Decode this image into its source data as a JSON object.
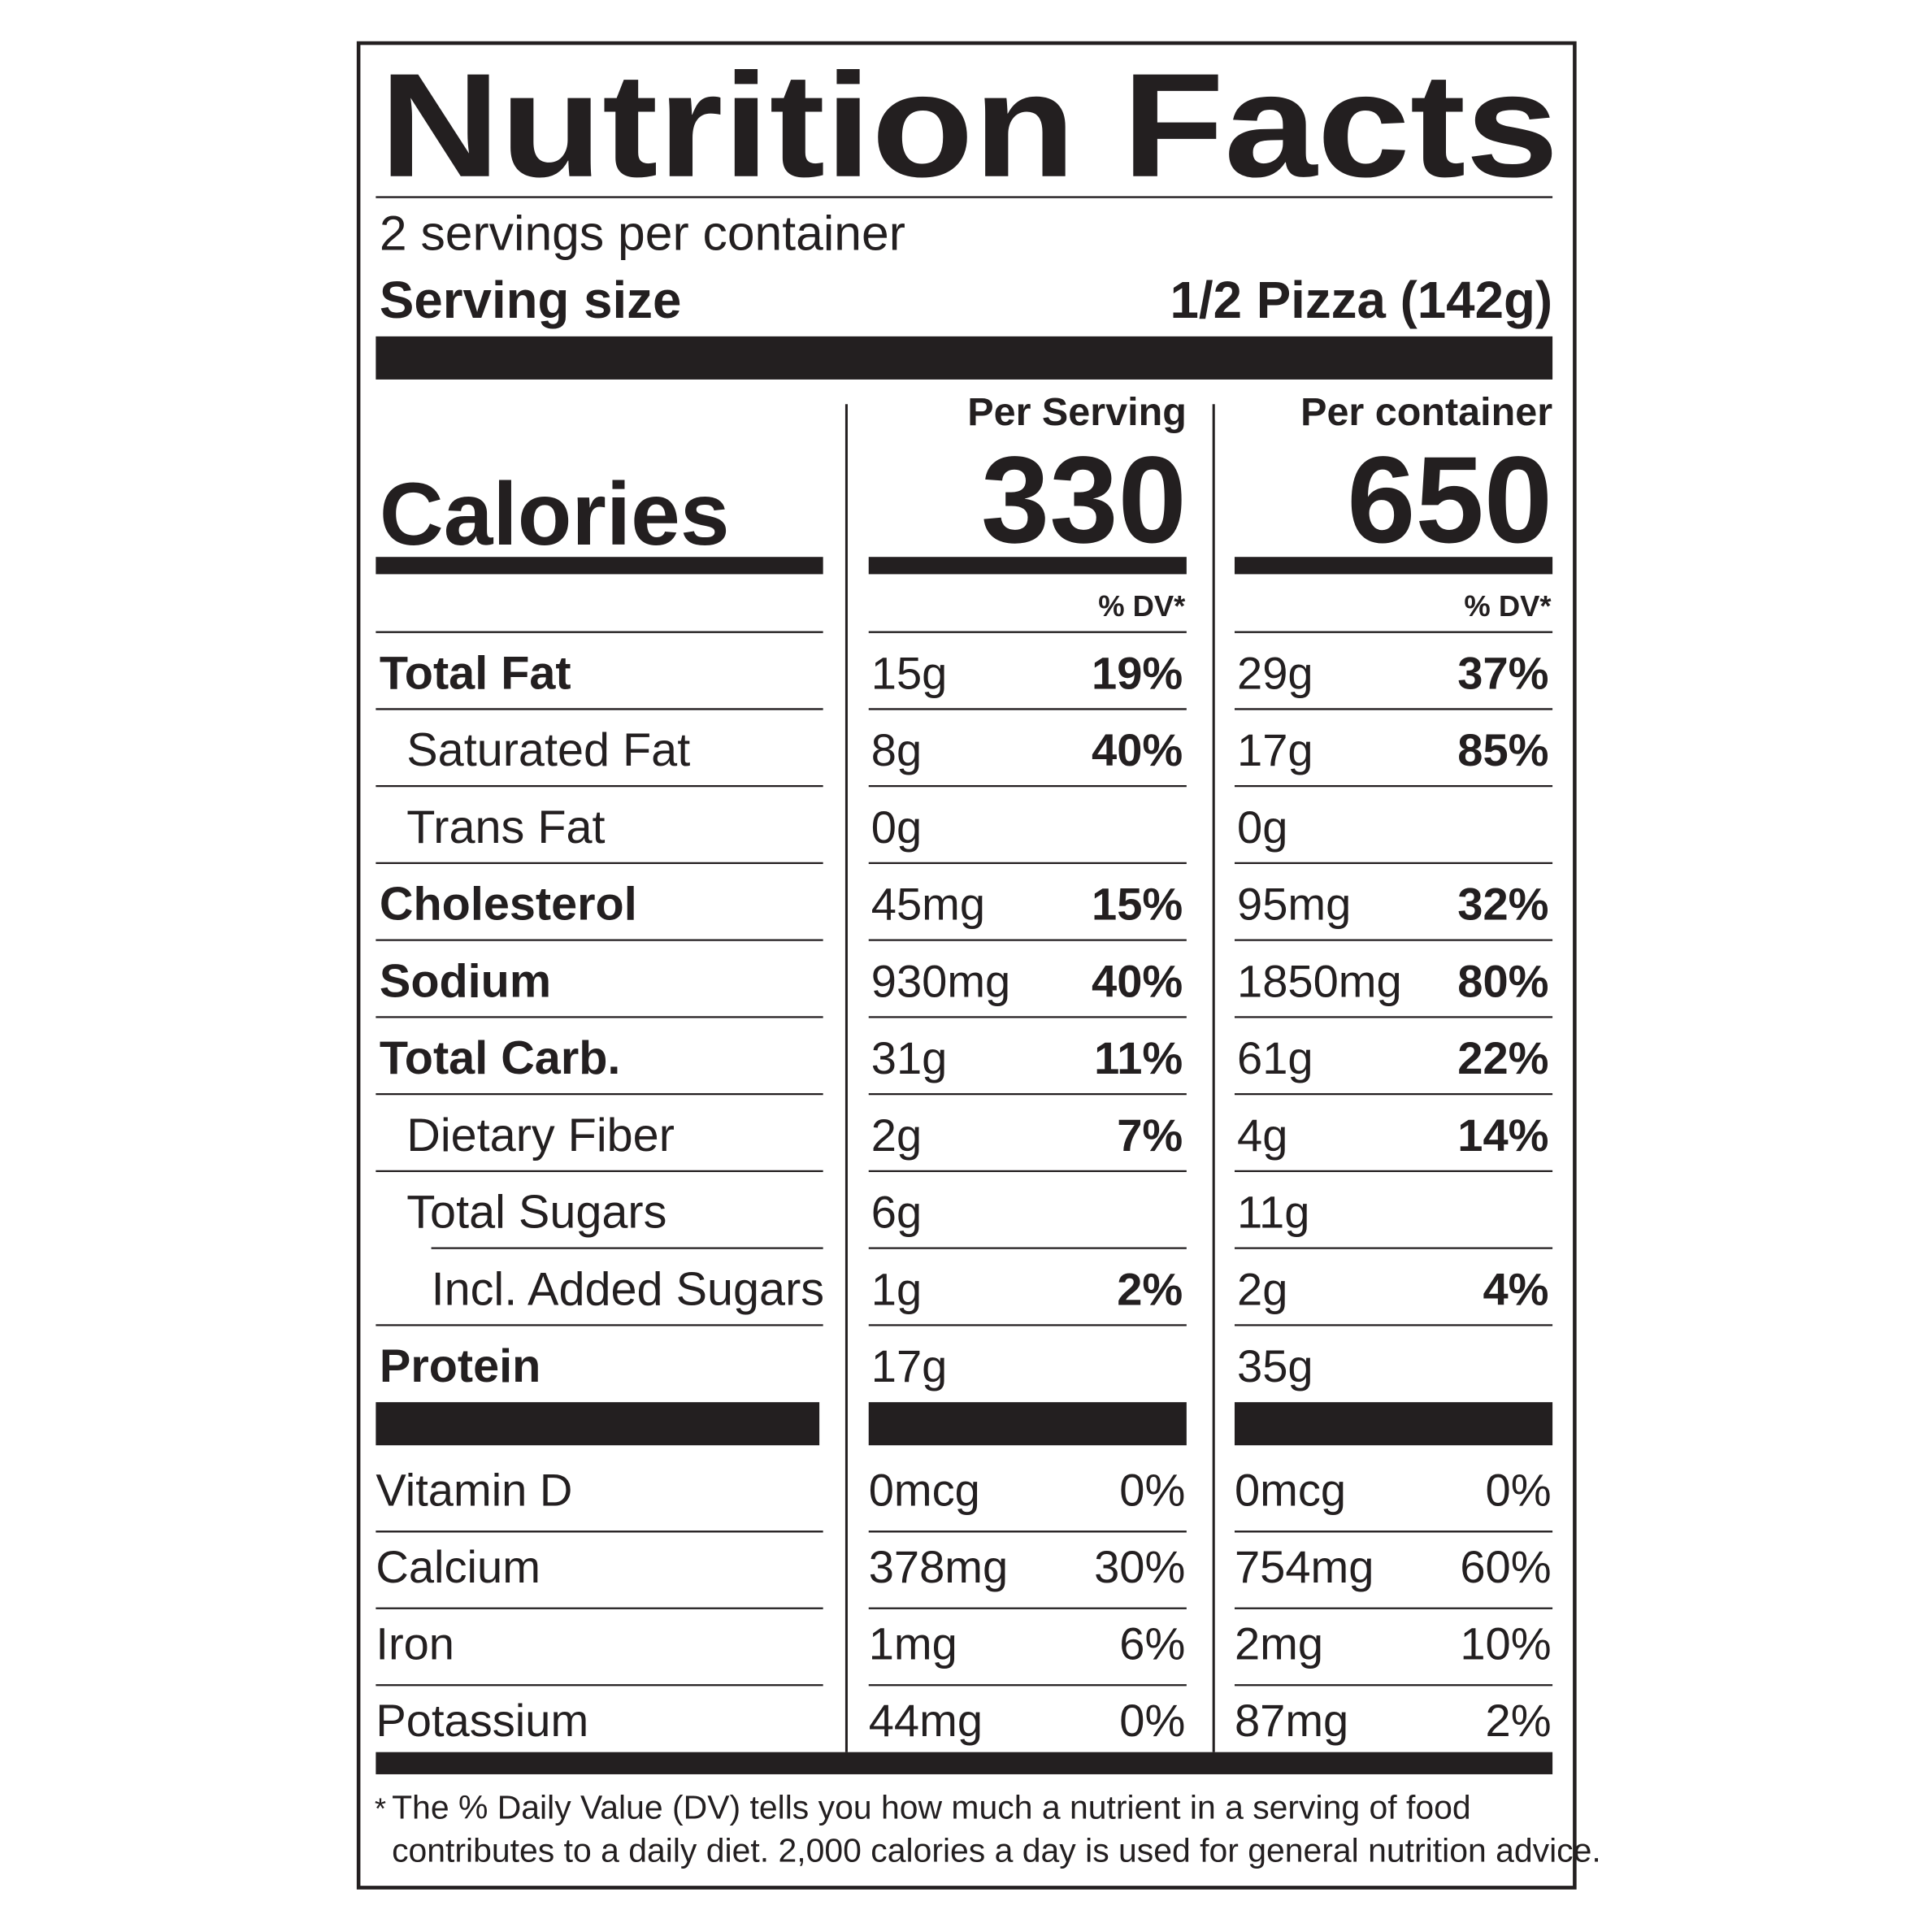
{
  "title": "Nutrition Facts",
  "servings": "2 servings per container",
  "serving_size_label": "Serving size",
  "serving_size": "1/2 Pizza (142g)",
  "calories_label": "Calories",
  "columns": [
    {
      "header": "Per Serving",
      "calories": "330",
      "dv_header": "% DV*"
    },
    {
      "header": "Per container",
      "calories": "650",
      "dv_header": "% DV*"
    }
  ],
  "nutrients": [
    {
      "name": "Total Fat",
      "values": [
        [
          "15g",
          "19%"
        ],
        [
          "29g",
          "37%"
        ]
      ]
    },
    {
      "name": "Saturated Fat",
      "values": [
        [
          "8g",
          "40%"
        ],
        [
          "17g",
          "85%"
        ]
      ]
    },
    {
      "name": "Trans Fat",
      "values": [
        [
          "0g",
          null
        ],
        [
          "0g",
          null
        ]
      ]
    },
    {
      "name": "Cholesterol",
      "values": [
        [
          "45mg",
          "15%"
        ],
        [
          "95mg",
          "32%"
        ]
      ]
    },
    {
      "name": "Sodium",
      "values": [
        [
          "930mg",
          "40%"
        ],
        [
          "1850mg",
          "80%"
        ]
      ]
    },
    {
      "name": "Total Carb.",
      "values": [
        [
          "31g",
          "11%"
        ],
        [
          "61g",
          "22%"
        ]
      ]
    },
    {
      "name": "Dietary Fiber",
      "values": [
        [
          "2g",
          "7%"
        ],
        [
          "4g",
          "14%"
        ]
      ]
    },
    {
      "name": "Total Sugars",
      "values": [
        [
          "6g",
          null
        ],
        [
          "11g",
          null
        ]
      ]
    },
    {
      "name": "Incl. Added Sugars",
      "values": [
        [
          "1g",
          "2%"
        ],
        [
          "2g",
          "4%"
        ]
      ]
    },
    {
      "name": "Protein",
      "values": [
        [
          "17g",
          null
        ],
        [
          "35g",
          null
        ]
      ]
    }
  ],
  "vitamins": [
    {
      "name": "Vitamin D",
      "values": [
        [
          "0mcg",
          "0%"
        ],
        [
          "0mcg",
          "0%"
        ]
      ]
    },
    {
      "name": "Calcium",
      "values": [
        [
          "378mg",
          "30%"
        ],
        [
          "754mg",
          "60%"
        ]
      ]
    },
    {
      "name": "Iron",
      "values": [
        [
          "1mg",
          "6%"
        ],
        [
          "2mg",
          "10%"
        ]
      ]
    },
    {
      "name": "Potassium",
      "values": [
        [
          "44mg",
          "0%"
        ],
        [
          "87mg",
          "2%"
        ]
      ]
    }
  ],
  "footnote": {
    "mark": "*",
    "lines": [
      "The % Daily Value (DV) tells you how much a nutrient in a serving of food",
      "contributes to a daily diet. 2,000 calories a day is used for general nutrition advice."
    ]
  }
}
